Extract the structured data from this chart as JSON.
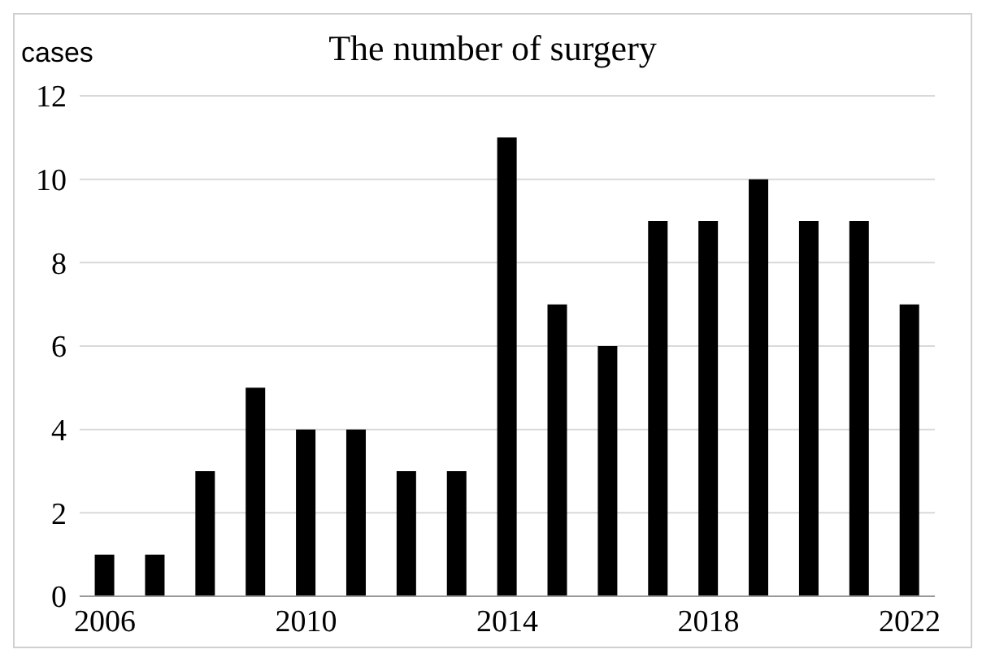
{
  "chart_data": {
    "type": "bar",
    "title": "The number of surgery",
    "ylabel": "cases",
    "categories": [
      "2006",
      null,
      null,
      null,
      "2010",
      null,
      null,
      null,
      "2014",
      null,
      null,
      null,
      "2018",
      null,
      null,
      null,
      "2022"
    ],
    "values": [
      1,
      1,
      3,
      5,
      4,
      4,
      3,
      3,
      11,
      7,
      6,
      9,
      9,
      10,
      9,
      9,
      7
    ],
    "color": "#000000",
    "ylim": [
      0,
      12
    ],
    "yticks": [
      0,
      2,
      4,
      6,
      8,
      10,
      12
    ],
    "grid": "y"
  }
}
